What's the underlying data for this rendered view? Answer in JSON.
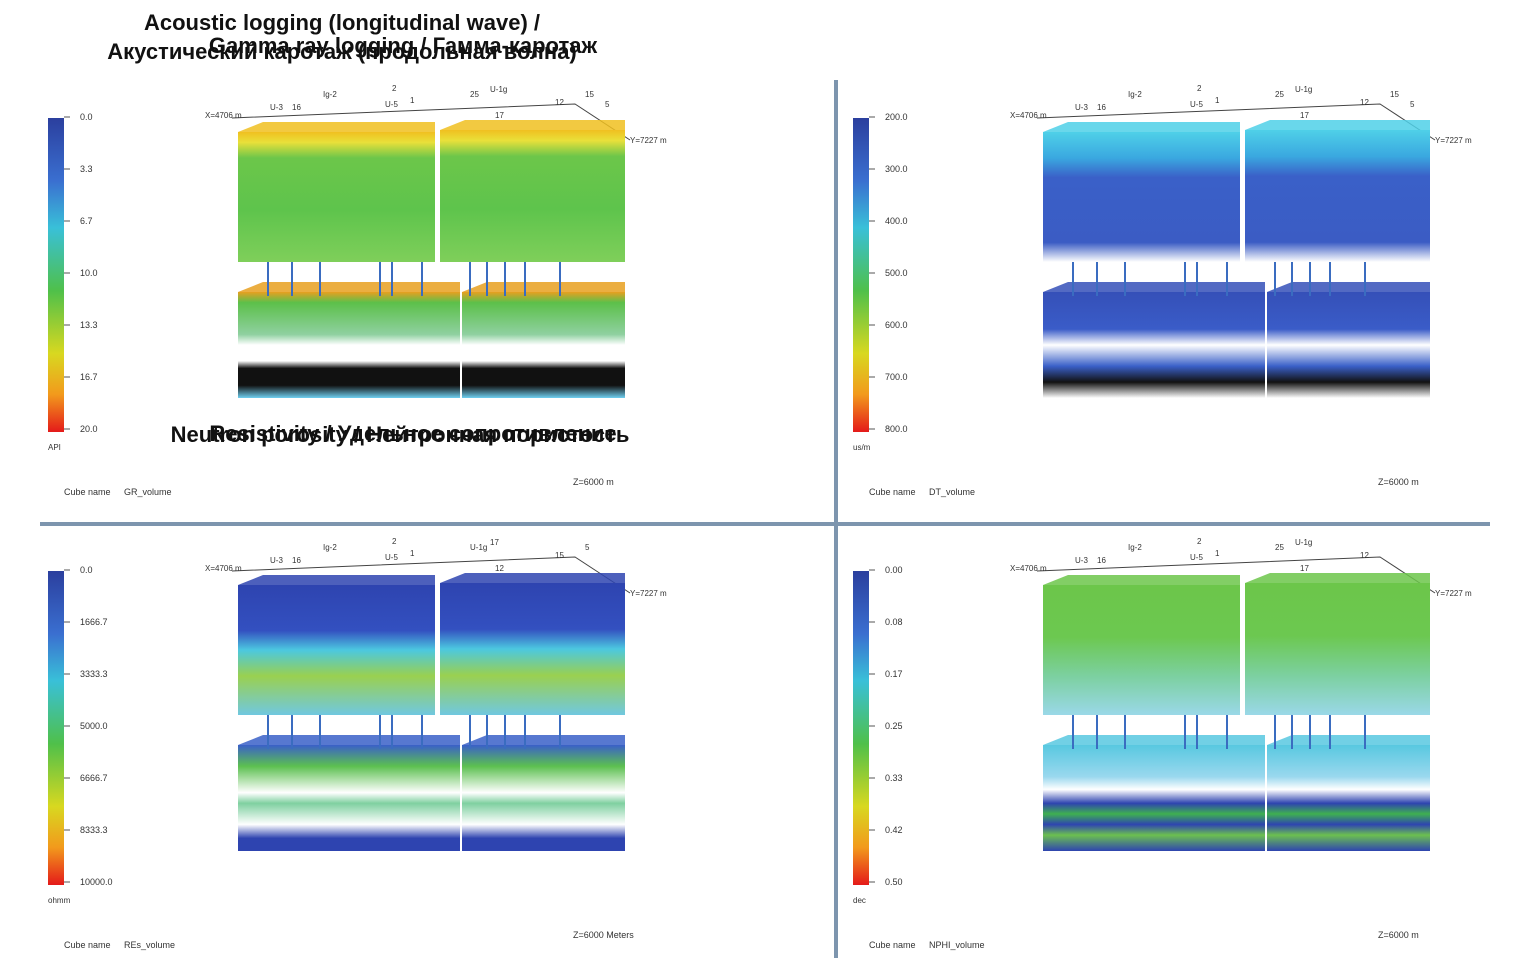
{
  "panels": [
    {
      "title": [
        "Gamma ray logging / Гамма-каротаж"
      ],
      "colorbar": {
        "ticks": [
          "0.0",
          "3.3",
          "6.7",
          "10.0",
          "13.3",
          "16.7",
          "20.0"
        ],
        "unit": "API"
      },
      "cube_label": "Cube name",
      "cube_name": "GR_volume",
      "z_label": "Z=6000 m",
      "x_label": "X=4706 m",
      "y_label": "Y=7227 m",
      "wells": [
        "U-3",
        "16",
        "Ig-2",
        "2",
        "U-5",
        "1",
        "25",
        "U-1g",
        "17",
        "12",
        "15",
        "5"
      ]
    },
    {
      "title": [
        "Acoustic logging (longitudinal wave) /",
        "Акустический каротаж (продольная волна)"
      ],
      "colorbar": {
        "ticks": [
          "200.0",
          "300.0",
          "400.0",
          "500.0",
          "600.0",
          "700.0",
          "800.0"
        ],
        "unit": "us/m"
      },
      "cube_label": "Cube name",
      "cube_name": "DT_volume",
      "z_label": "Z=6000 m",
      "x_label": "X=4706 m",
      "y_label": "Y=7227 m",
      "wells": [
        "U-3",
        "16",
        "Ig-2",
        "2",
        "U-5",
        "1",
        "25",
        "U-1g",
        "17",
        "12",
        "15",
        "5"
      ]
    },
    {
      "title": [
        "Resistivity / Удельное сопротивление"
      ],
      "colorbar": {
        "ticks": [
          "0.0",
          "1666.7",
          "3333.3",
          "5000.0",
          "6666.7",
          "8333.3",
          "10000.0"
        ],
        "unit": "ohmm"
      },
      "cube_label": "Cube name",
      "cube_name": "REs_volume",
      "z_label": "Z=6000 Meters",
      "x_label": "X=4706 m",
      "y_label": "Y=7227 m",
      "wells": [
        "U-3",
        "16",
        "Ig-2",
        "2",
        "U-5",
        "1",
        "U-1g",
        "17",
        "12",
        "15",
        "5"
      ]
    },
    {
      "title": [
        "Neutron porosity / Нейтронная пористость"
      ],
      "colorbar": {
        "ticks": [
          "0.00",
          "0.08",
          "0.17",
          "0.25",
          "0.33",
          "0.42",
          "0.50"
        ],
        "unit": "dec"
      },
      "cube_label": "Cube name",
      "cube_name": "NPHI_volume",
      "z_label": "Z=6000 m",
      "x_label": "X=4706 m",
      "y_label": "Y=7227 m",
      "wells": [
        "U-3",
        "16",
        "Ig-2",
        "2",
        "U-5",
        "1",
        "25",
        "U-1g",
        "17",
        "12"
      ]
    }
  ]
}
